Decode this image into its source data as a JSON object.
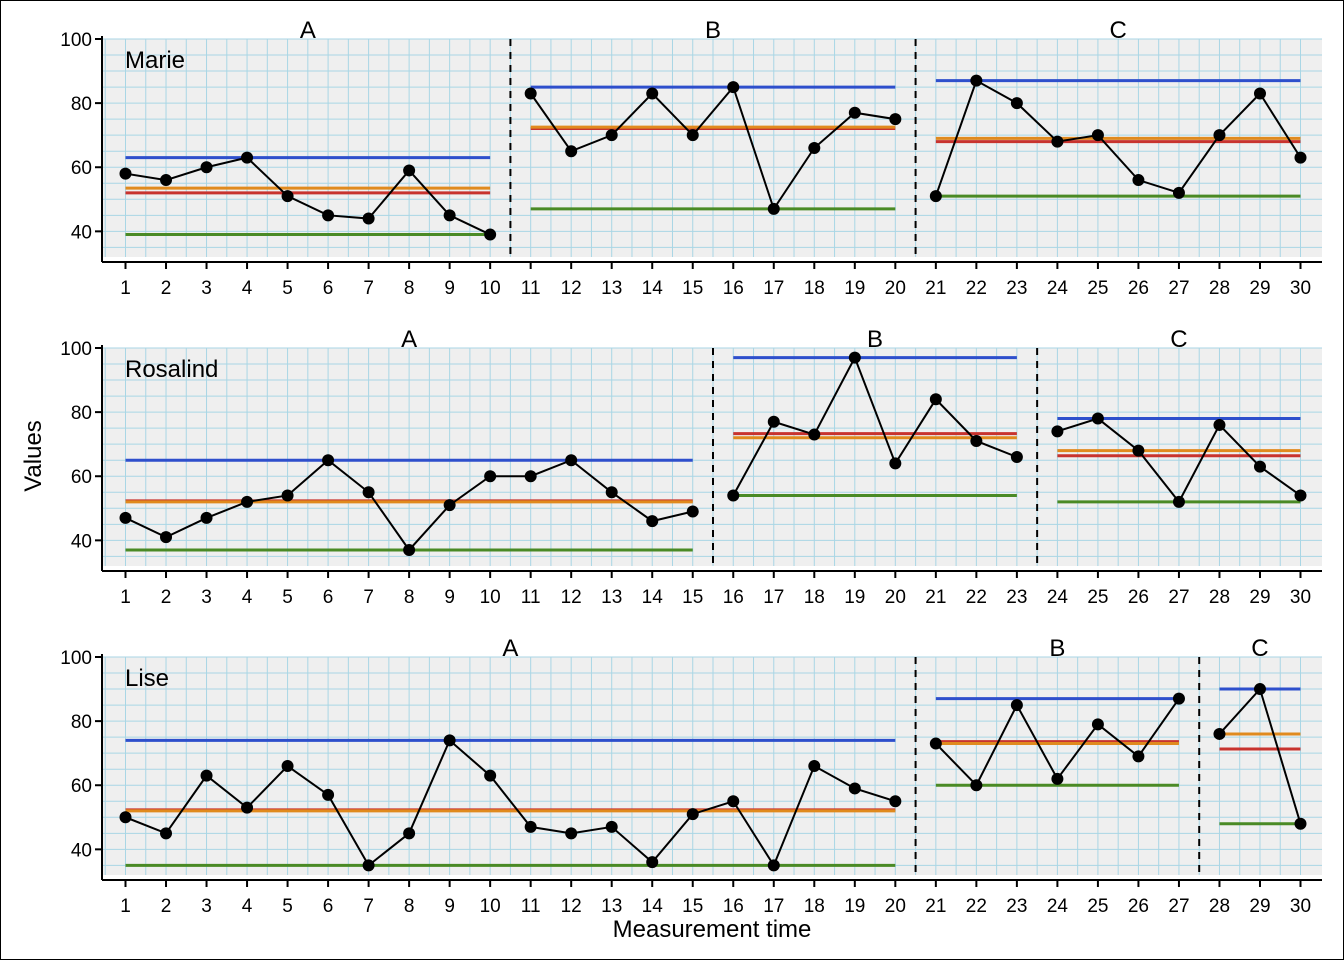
{
  "figure": {
    "ylabel": "Values",
    "xlabel": "Measurement time"
  },
  "colors": {
    "panel_bg": "#efefef",
    "grid": "#a9d6e5",
    "data_line": "#000000",
    "max_line": "#2e4fcc",
    "min_line": "#4a8a25",
    "mean_line": "#c8332e",
    "median_line": "#e08a1e"
  },
  "chart_data": [
    {
      "type": "line",
      "case": "Marie",
      "ylim": [
        32,
        100
      ],
      "yticks": [
        40,
        60,
        80,
        100
      ],
      "grid": true,
      "x": [
        1,
        2,
        3,
        4,
        5,
        6,
        7,
        8,
        9,
        10,
        11,
        12,
        13,
        14,
        15,
        16,
        17,
        18,
        19,
        20,
        21,
        22,
        23,
        24,
        25,
        26,
        27,
        28,
        29,
        30
      ],
      "values": [
        58,
        56,
        60,
        63,
        51,
        45,
        44,
        59,
        45,
        39,
        83,
        65,
        70,
        83,
        70,
        85,
        47,
        66,
        77,
        75,
        51,
        87,
        80,
        68,
        70,
        56,
        52,
        70,
        83,
        63
      ],
      "phases": [
        {
          "label": "A",
          "from": 1,
          "to": 10,
          "max": 63,
          "min": 39,
          "mean": 52,
          "median": 53.5
        },
        {
          "label": "B",
          "from": 11,
          "to": 20,
          "max": 85,
          "min": 47,
          "mean": 72.1,
          "median": 72.5
        },
        {
          "label": "C",
          "from": 21,
          "to": 30,
          "max": 87,
          "min": 51,
          "mean": 68,
          "median": 69
        }
      ]
    },
    {
      "type": "line",
      "case": "Rosalind",
      "ylim": [
        32,
        100
      ],
      "yticks": [
        40,
        60,
        80,
        100
      ],
      "grid": true,
      "x": [
        1,
        2,
        3,
        4,
        5,
        6,
        7,
        8,
        9,
        10,
        11,
        12,
        13,
        14,
        15,
        16,
        17,
        18,
        19,
        20,
        21,
        22,
        23,
        24,
        25,
        26,
        27,
        28,
        29,
        30
      ],
      "values": [
        47,
        41,
        47,
        52,
        54,
        65,
        55,
        37,
        51,
        60,
        60,
        65,
        55,
        46,
        49,
        54,
        77,
        73,
        97,
        64,
        84,
        71,
        66,
        74,
        78,
        68,
        52,
        76,
        63,
        54
      ],
      "phases": [
        {
          "label": "A",
          "from": 1,
          "to": 15,
          "max": 65,
          "min": 37,
          "mean": 52.3,
          "median": 52
        },
        {
          "label": "B",
          "from": 16,
          "to": 23,
          "max": 97,
          "min": 54,
          "mean": 73.3,
          "median": 72
        },
        {
          "label": "C",
          "from": 24,
          "to": 30,
          "max": 78,
          "min": 52,
          "mean": 66.4,
          "median": 68
        }
      ]
    },
    {
      "type": "line",
      "case": "Lise",
      "ylim": [
        32,
        100
      ],
      "yticks": [
        40,
        60,
        80,
        100
      ],
      "grid": true,
      "x": [
        1,
        2,
        3,
        4,
        5,
        6,
        7,
        8,
        9,
        10,
        11,
        12,
        13,
        14,
        15,
        16,
        17,
        18,
        19,
        20,
        21,
        22,
        23,
        24,
        25,
        26,
        27,
        28,
        29,
        30
      ],
      "values": [
        50,
        45,
        63,
        53,
        66,
        57,
        35,
        45,
        74,
        63,
        47,
        45,
        47,
        36,
        51,
        55,
        35,
        66,
        59,
        55,
        73,
        60,
        85,
        62,
        79,
        69,
        87,
        76,
        90,
        48
      ],
      "phases": [
        {
          "label": "A",
          "from": 1,
          "to": 20,
          "max": 74,
          "min": 35,
          "mean": 52.3,
          "median": 52
        },
        {
          "label": "B",
          "from": 21,
          "to": 27,
          "max": 87,
          "min": 60,
          "mean": 73.6,
          "median": 73
        },
        {
          "label": "C",
          "from": 28,
          "to": 30,
          "max": 90,
          "min": 48,
          "mean": 71.3,
          "median": 76
        }
      ]
    }
  ]
}
